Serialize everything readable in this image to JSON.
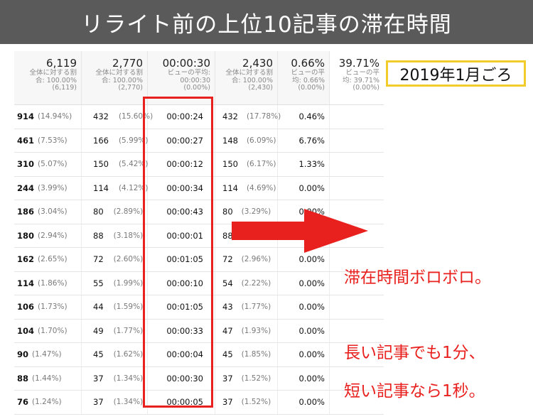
{
  "banner": {
    "title": "リライト前の上位10記事の滞在時間"
  },
  "badge": {
    "label": "2019年1月ごろ"
  },
  "notes": {
    "line1": "滞在時間ボロボロ。",
    "line2": "長い記事でも1分、",
    "line3": "短い記事なら1秒。"
  },
  "colors": {
    "banner_bg": "#5a5a5a",
    "highlight_red": "#e8201e",
    "badge_border": "#f2cc2b"
  },
  "summary": [
    {
      "value": "6,119",
      "sub1": "全体に対する割",
      "sub2": "合: 100.00%",
      "sub3": "(6,119)"
    },
    {
      "value": "2,770",
      "sub1": "全体に対する割",
      "sub2": "合: 100.00%",
      "sub3": "(2,770)"
    },
    {
      "value": "00:00:30",
      "sub1": "ビューの平均:",
      "sub2": "00:00:30",
      "sub3": "(0.00%)"
    },
    {
      "value": "2,430",
      "sub1": "全体に対する割",
      "sub2": "合: 100.00%",
      "sub3": "(2,430)"
    },
    {
      "value": "0.66%",
      "sub1": "ビューの平",
      "sub2": "均: 0.66%",
      "sub3": "(0.00%)"
    },
    {
      "value": "39.71%",
      "sub1": "ビューの平",
      "sub2": "均: 39.71%",
      "sub3": "(0.00%)"
    }
  ],
  "rows": [
    {
      "c1": "914",
      "c1p": "(14.94%)",
      "c2": "432",
      "c2p": "(15.60%)",
      "time": "00:00:24",
      "c4": "432",
      "c4p": "(17.78%)",
      "c5": "0.46%"
    },
    {
      "c1": "461",
      "c1p": "(7.53%)",
      "c2": "166",
      "c2p": "(5.99%)",
      "time": "00:00:27",
      "c4": "148",
      "c4p": "(6.09%)",
      "c5": "6.76%"
    },
    {
      "c1": "310",
      "c1p": "(5.07%)",
      "c2": "150",
      "c2p": "(5.42%)",
      "time": "00:00:12",
      "c4": "150",
      "c4p": "(6.17%)",
      "c5": "1.33%"
    },
    {
      "c1": "244",
      "c1p": "(3.99%)",
      "c2": "114",
      "c2p": "(4.12%)",
      "time": "00:00:34",
      "c4": "114",
      "c4p": "(4.69%)",
      "c5": "0.00%"
    },
    {
      "c1": "186",
      "c1p": "(3.04%)",
      "c2": "80",
      "c2p": "(2.89%)",
      "time": "00:00:43",
      "c4": "80",
      "c4p": "(3.29%)",
      "c5": "0.00%"
    },
    {
      "c1": "180",
      "c1p": "(2.94%)",
      "c2": "88",
      "c2p": "(3.18%)",
      "time": "00:00:01",
      "c4": "88",
      "c4p": "",
      "c5": ""
    },
    {
      "c1": "162",
      "c1p": "(2.65%)",
      "c2": "72",
      "c2p": "(2.60%)",
      "time": "00:01:05",
      "c4": "72",
      "c4p": "(2.96%)",
      "c5": "0.00%"
    },
    {
      "c1": "114",
      "c1p": "(1.86%)",
      "c2": "55",
      "c2p": "(1.99%)",
      "time": "00:00:10",
      "c4": "54",
      "c4p": "(2.22%)",
      "c5": "0.00%"
    },
    {
      "c1": "106",
      "c1p": "(1.73%)",
      "c2": "44",
      "c2p": "(1.59%)",
      "time": "00:01:05",
      "c4": "43",
      "c4p": "(1.77%)",
      "c5": "0.00%"
    },
    {
      "c1": "104",
      "c1p": "(1.70%)",
      "c2": "49",
      "c2p": "(1.77%)",
      "time": "00:00:33",
      "c4": "47",
      "c4p": "(1.93%)",
      "c5": "0.00%"
    },
    {
      "c1": "90",
      "c1p": "(1.47%)",
      "c2": "45",
      "c2p": "(1.62%)",
      "time": "00:00:04",
      "c4": "45",
      "c4p": "(1.85%)",
      "c5": "0.00%"
    },
    {
      "c1": "88",
      "c1p": "(1.44%)",
      "c2": "37",
      "c2p": "(1.34%)",
      "time": "00:00:30",
      "c4": "37",
      "c4p": "(1.52%)",
      "c5": "0.00%"
    },
    {
      "c1": "76",
      "c1p": "(1.24%)",
      "c2": "37",
      "c2p": "(1.34%)",
      "time": "00:00:05",
      "c4": "37",
      "c4p": "(1.52%)",
      "c5": "0.00%"
    }
  ]
}
